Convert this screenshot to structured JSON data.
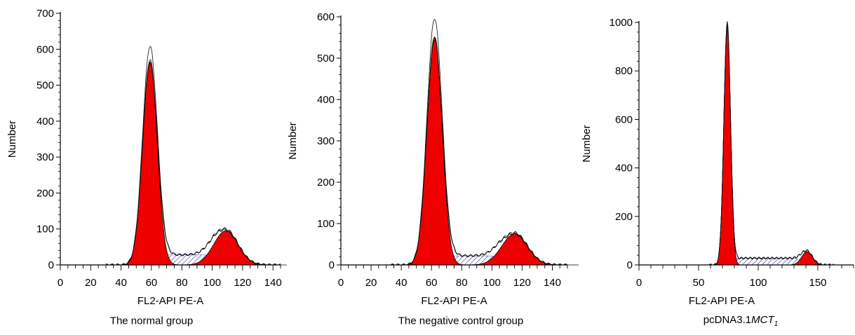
{
  "chart_data": [
    {
      "type": "area",
      "caption": "The normal group",
      "xlabel": "FL2-API PE-A",
      "ylabel": "Number",
      "xlim": [
        0,
        145
      ],
      "ylim": [
        0,
        700
      ],
      "xticks": [
        0,
        20,
        40,
        60,
        80,
        100,
        120,
        140
      ],
      "yticks": [
        0,
        100,
        200,
        300,
        400,
        500,
        600,
        700
      ],
      "peaks": [
        {
          "component": "G1",
          "center": 59,
          "height": 565,
          "width": 4.8
        },
        {
          "component": "G2",
          "center": 109,
          "height": 95,
          "width": 8
        }
      ],
      "s_phase": {
        "from": 62,
        "to": 104,
        "height": 28
      },
      "envelope_max": 603
    },
    {
      "type": "area",
      "caption": "The negative control group",
      "xlabel": "FL2-API PE-A",
      "ylabel": "Number",
      "xlim": [
        0,
        150
      ],
      "ylim": [
        0,
        600
      ],
      "xticks": [
        0,
        20,
        40,
        60,
        80,
        100,
        120,
        140
      ],
      "yticks": [
        0,
        100,
        200,
        300,
        400,
        500,
        600
      ],
      "peaks": [
        {
          "component": "G1",
          "center": 62,
          "height": 550,
          "width": 5
        },
        {
          "component": "G2",
          "center": 115,
          "height": 75,
          "width": 8.5
        }
      ],
      "s_phase": {
        "from": 66,
        "to": 108,
        "height": 22
      },
      "envelope_max": 593
    },
    {
      "type": "area",
      "caption": "pcDNA3.1",
      "caption_italic": "MCT",
      "caption_sub": "1",
      "xlabel": "FL2-API PE-A",
      "ylabel": "Number",
      "xlim": [
        0,
        180
      ],
      "ylim": [
        0,
        1000
      ],
      "xticks": [
        0,
        50,
        100,
        150
      ],
      "yticks": [
        0,
        200,
        400,
        600,
        800,
        1000
      ],
      "peaks": [
        {
          "component": "G1",
          "center": 74,
          "height": 985,
          "width": 2.8
        },
        {
          "component": "G2",
          "center": 141,
          "height": 55,
          "width": 4.5
        }
      ],
      "s_phase": {
        "from": 77,
        "to": 137,
        "height": 28
      },
      "envelope_max": 998
    }
  ],
  "colors": {
    "fill": "#ee0000",
    "hatch": "#4a4ab8",
    "line": "#000000"
  }
}
